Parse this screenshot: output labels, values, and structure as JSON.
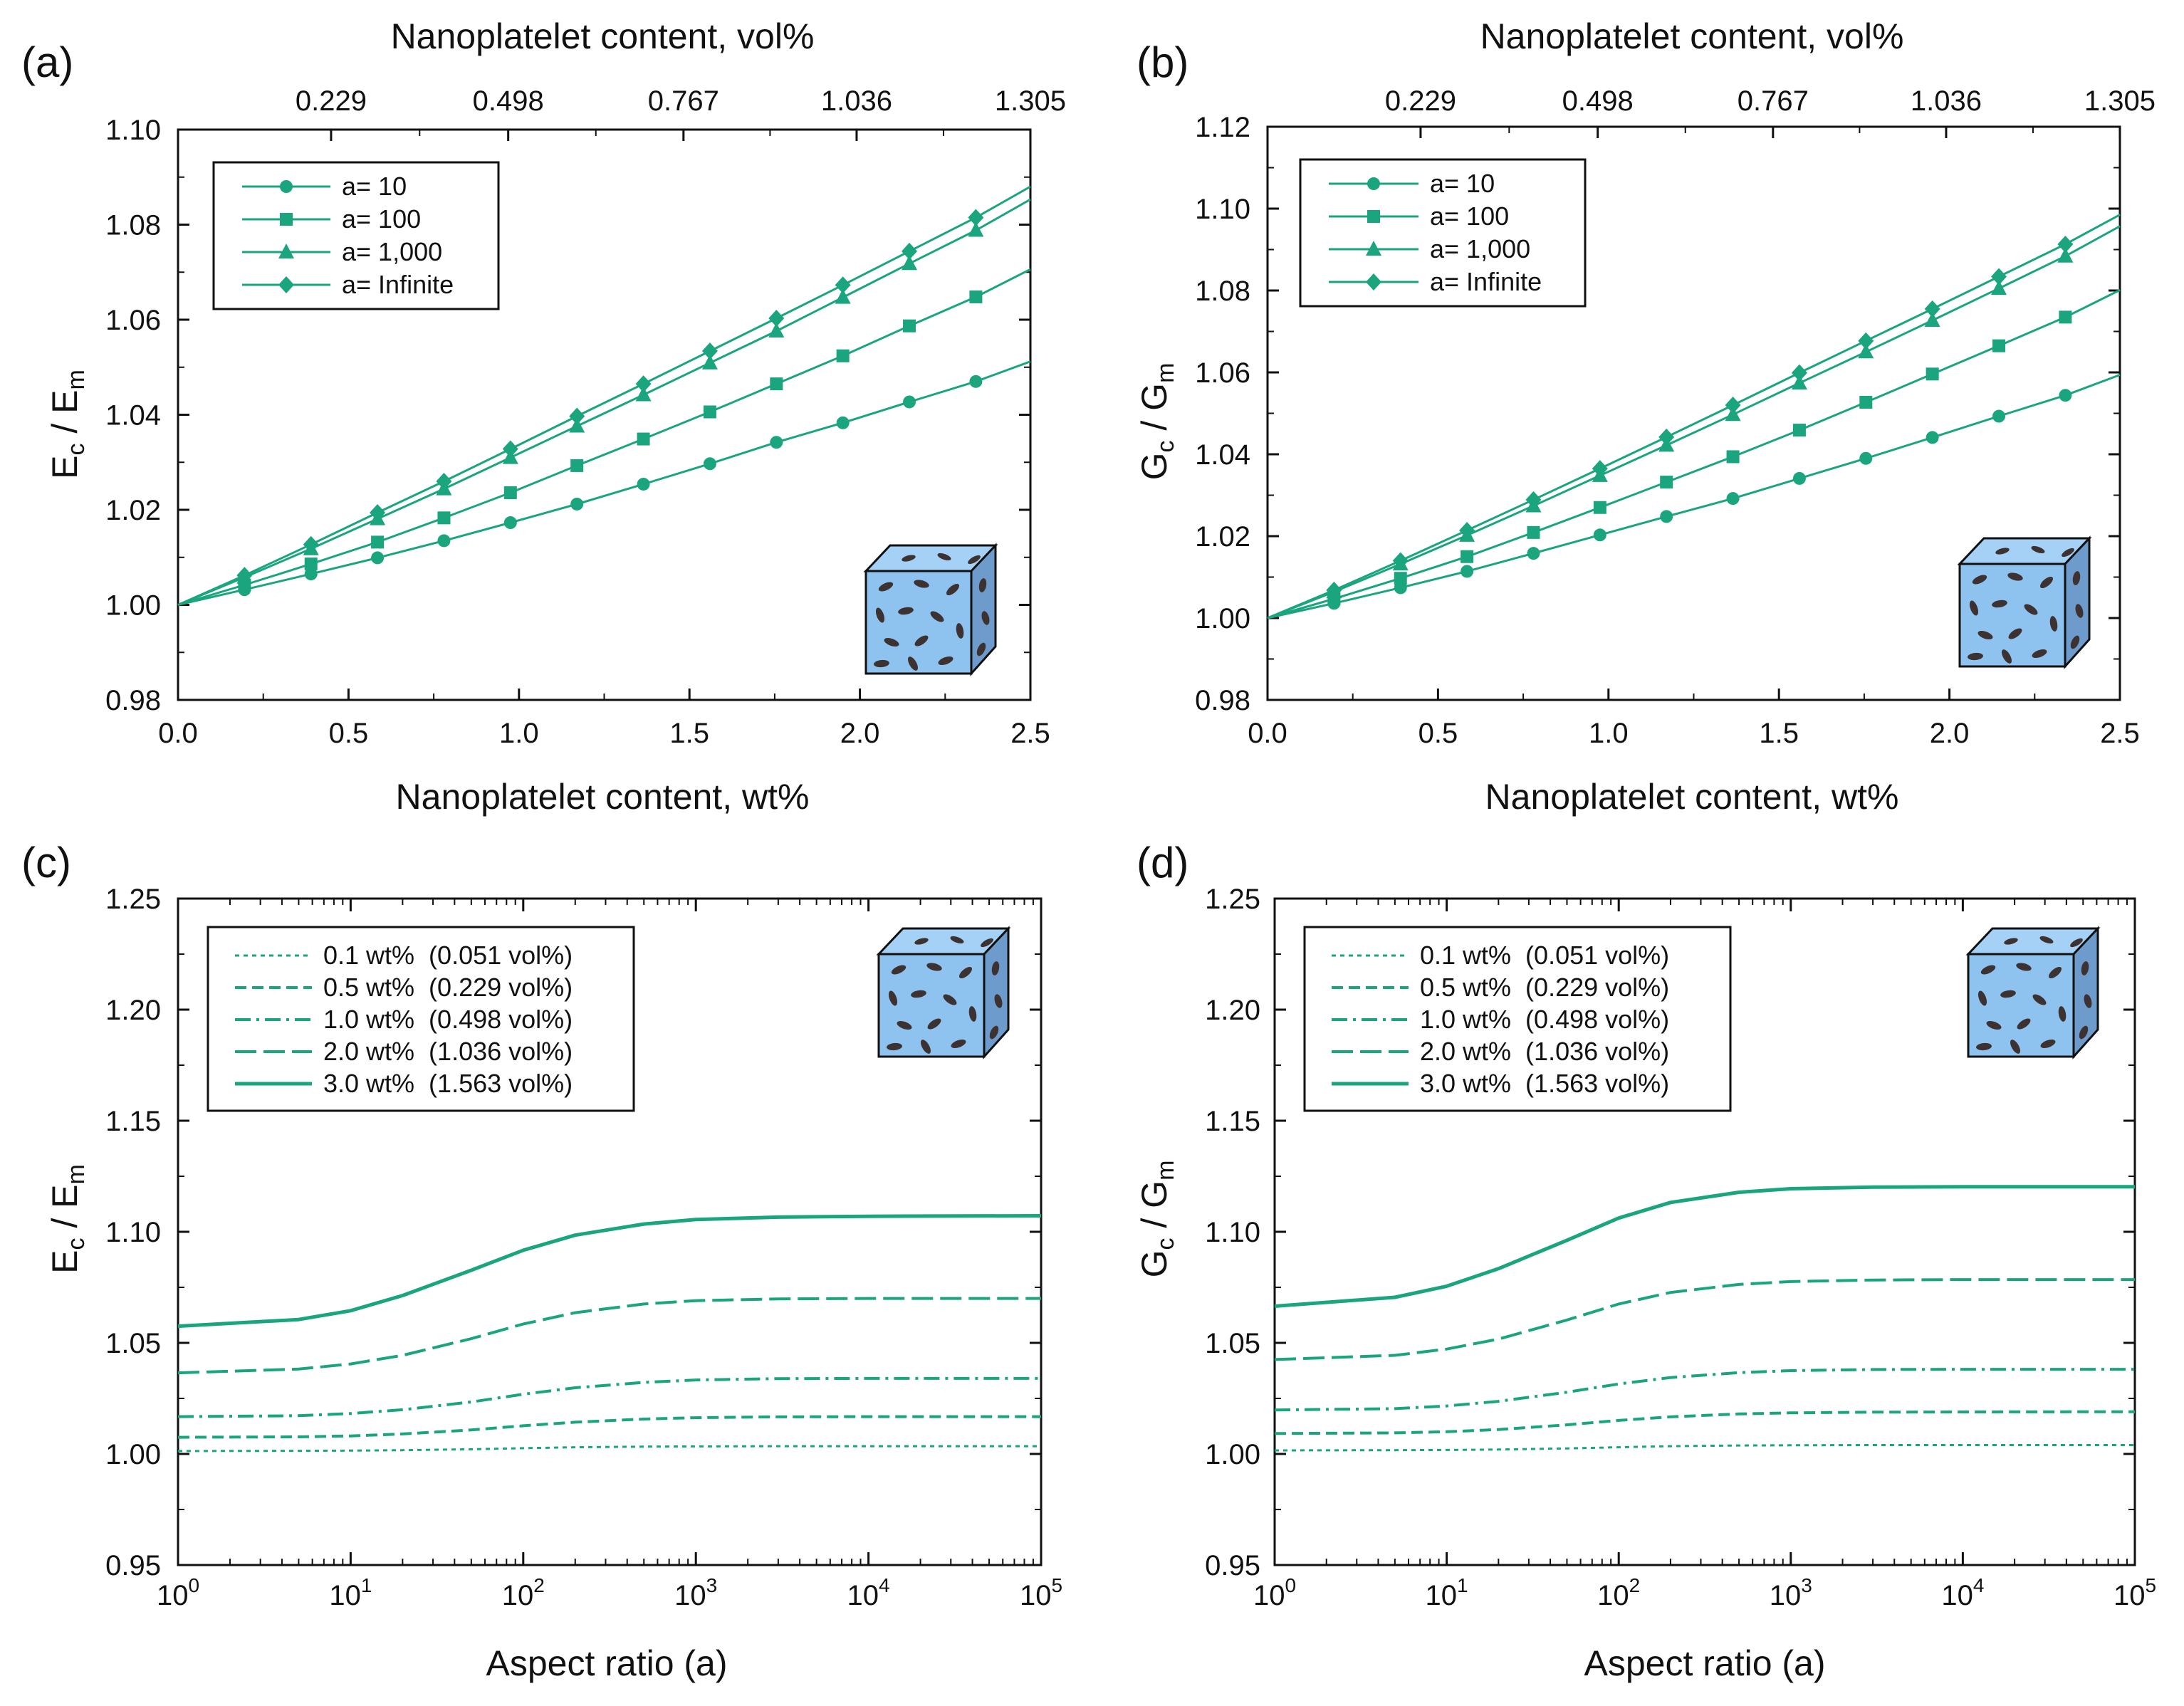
{
  "colors": {
    "series": "#1aa57e",
    "axis": "#111111",
    "cube_face": "#8ec3f0",
    "cube_side": "#6d9ccc",
    "cube_top": "#a6d1f6",
    "flake": "#3c3231"
  },
  "chart_data": [
    {
      "panel": "(a)",
      "type": "line",
      "xscale": "linear",
      "xlabel": "Nanoplatelet content, wt%",
      "ylabel_main": "E",
      "ylabel_sub1": "c",
      "ylabel_mid": " / E",
      "ylabel_sub2": "m",
      "top_axis_label": "Nanoplatelet content, vol%",
      "top_ticks": [
        {
          "wt": 0.4489,
          "label": "0.229"
        },
        {
          "wt": 0.9684,
          "label": "0.498"
        },
        {
          "wt": 1.4825,
          "label": "0.767"
        },
        {
          "wt": 1.9903,
          "label": "1.036"
        },
        {
          "wt": 2.4999,
          "label": "1.305"
        }
      ],
      "xlim": [
        0,
        2.5
      ],
      "ylim": [
        0.98,
        1.1
      ],
      "x_ticks": [
        {
          "v": 0,
          "label": "0.0"
        },
        {
          "v": 0.5,
          "label": "0.5"
        },
        {
          "v": 1.0,
          "label": "1.0"
        },
        {
          "v": 1.5,
          "label": "1.5"
        },
        {
          "v": 2.0,
          "label": "2.0"
        },
        {
          "v": 2.5,
          "label": "2.5"
        }
      ],
      "y_ticks": [
        {
          "v": 0.98,
          "label": "0.98"
        },
        {
          "v": 1.0,
          "label": "1.00"
        },
        {
          "v": 1.02,
          "label": "1.02"
        },
        {
          "v": 1.04,
          "label": "1.04"
        },
        {
          "v": 1.06,
          "label": "1.06"
        },
        {
          "v": 1.08,
          "label": "1.08"
        },
        {
          "v": 1.1,
          "label": "1.10"
        }
      ],
      "legend": "top-left",
      "series": [
        {
          "name": "a= 10",
          "marker": "circle",
          "x": [
            0,
            0.195,
            0.39,
            0.585,
            0.78,
            0.975,
            1.17,
            1.365,
            1.56,
            1.755,
            1.95,
            2.145,
            2.34,
            2.5
          ],
          "y": [
            1.0,
            1.0032,
            1.0065,
            1.0099,
            1.0135,
            1.0173,
            1.0212,
            1.0254,
            1.0297,
            1.0342,
            1.0383,
            1.0427,
            1.047,
            1.0512
          ]
        },
        {
          "name": "a= 100",
          "marker": "square",
          "x": [
            0,
            0.195,
            0.39,
            0.585,
            0.78,
            0.975,
            1.17,
            1.365,
            1.56,
            1.755,
            1.95,
            2.145,
            2.34,
            2.5
          ],
          "y": [
            1.0,
            1.0042,
            1.0086,
            1.0132,
            1.0183,
            1.0236,
            1.0293,
            1.0349,
            1.0406,
            1.0465,
            1.0524,
            1.0587,
            1.0648,
            1.0706
          ]
        },
        {
          "name": "a= 1,000",
          "marker": "triangle",
          "x": [
            0,
            0.195,
            0.39,
            0.585,
            0.78,
            0.975,
            1.17,
            1.365,
            1.56,
            1.755,
            1.95,
            2.145,
            2.34,
            2.5
          ],
          "y": [
            1.0,
            1.0058,
            1.0118,
            1.0181,
            1.0244,
            1.031,
            1.0376,
            1.0442,
            1.0509,
            1.0576,
            1.0647,
            1.0718,
            1.0788,
            1.0853
          ]
        },
        {
          "name": "a= Infinite",
          "marker": "diamond",
          "x": [
            0,
            0.195,
            0.39,
            0.585,
            0.78,
            0.975,
            1.17,
            1.365,
            1.56,
            1.755,
            1.95,
            2.145,
            2.34,
            2.5
          ],
          "y": [
            1.0,
            1.0062,
            1.0127,
            1.0194,
            1.026,
            1.0328,
            1.0397,
            1.0465,
            1.0534,
            1.0603,
            1.0673,
            1.0744,
            1.0815,
            1.088
          ]
        }
      ]
    },
    {
      "panel": "(b)",
      "type": "line",
      "xscale": "linear",
      "xlabel": "Nanoplatelet content, wt%",
      "ylabel_main": "G",
      "ylabel_sub1": "c",
      "ylabel_mid": " / G",
      "ylabel_sub2": "m",
      "top_axis_label": "Nanoplatelet content, vol%",
      "top_ticks": [
        {
          "wt": 0.4489,
          "label": "0.229"
        },
        {
          "wt": 0.9684,
          "label": "0.498"
        },
        {
          "wt": 1.4825,
          "label": "0.767"
        },
        {
          "wt": 1.9903,
          "label": "1.036"
        },
        {
          "wt": 2.4999,
          "label": "1.305"
        }
      ],
      "xlim": [
        0,
        2.5
      ],
      "ylim": [
        0.98,
        1.12
      ],
      "x_ticks": [
        {
          "v": 0,
          "label": "0.0"
        },
        {
          "v": 0.5,
          "label": "0.5"
        },
        {
          "v": 1.0,
          "label": "1.0"
        },
        {
          "v": 1.5,
          "label": "1.5"
        },
        {
          "v": 2.0,
          "label": "2.0"
        },
        {
          "v": 2.5,
          "label": "2.5"
        }
      ],
      "y_ticks": [
        {
          "v": 0.98,
          "label": "0.98"
        },
        {
          "v": 1.0,
          "label": "1.00"
        },
        {
          "v": 1.02,
          "label": "1.02"
        },
        {
          "v": 1.04,
          "label": "1.04"
        },
        {
          "v": 1.06,
          "label": "1.06"
        },
        {
          "v": 1.08,
          "label": "1.08"
        },
        {
          "v": 1.1,
          "label": "1.10"
        },
        {
          "v": 1.12,
          "label": "1.12"
        }
      ],
      "legend": "top-left",
      "series": [
        {
          "name": "a= 10",
          "marker": "circle",
          "x": [
            0,
            0.195,
            0.39,
            0.585,
            0.78,
            0.975,
            1.17,
            1.365,
            1.56,
            1.755,
            1.95,
            2.145,
            2.34,
            2.5
          ],
          "y": [
            1.0,
            1.0036,
            1.0074,
            1.0114,
            1.0158,
            1.0203,
            1.0248,
            1.0292,
            1.0341,
            1.039,
            1.0441,
            1.0493,
            1.0544,
            1.0594
          ]
        },
        {
          "name": "a= 100",
          "marker": "square",
          "x": [
            0,
            0.195,
            0.39,
            0.585,
            0.78,
            0.975,
            1.17,
            1.365,
            1.56,
            1.755,
            1.95,
            2.145,
            2.34,
            2.5
          ],
          "y": [
            1.0,
            1.0047,
            1.0097,
            1.015,
            1.0209,
            1.027,
            1.0332,
            1.0394,
            1.0459,
            1.0527,
            1.0596,
            1.0665,
            1.0735,
            1.0801
          ]
        },
        {
          "name": "a= 1,000",
          "marker": "triangle",
          "x": [
            0,
            0.195,
            0.39,
            0.585,
            0.78,
            0.975,
            1.17,
            1.365,
            1.56,
            1.755,
            1.95,
            2.145,
            2.34,
            2.5
          ],
          "y": [
            1.0,
            1.0064,
            1.0132,
            1.0202,
            1.0274,
            1.0348,
            1.0422,
            1.0497,
            1.0574,
            1.065,
            1.0727,
            1.0805,
            1.0884,
            1.0957
          ]
        },
        {
          "name": "a= Infinite",
          "marker": "diamond",
          "x": [
            0,
            0.195,
            0.39,
            0.585,
            0.78,
            0.975,
            1.17,
            1.365,
            1.56,
            1.755,
            1.95,
            2.145,
            2.34,
            2.5
          ],
          "y": [
            1.0,
            1.0068,
            1.014,
            1.0214,
            1.0289,
            1.0365,
            1.0442,
            1.052,
            1.0599,
            1.0677,
            1.0755,
            1.0834,
            1.0913,
            1.0985
          ]
        }
      ]
    },
    {
      "panel": "(c)",
      "type": "line",
      "xscale": "log",
      "xlabel": "Aspect ratio (a)",
      "ylabel_main": "E",
      "ylabel_sub1": "c",
      "ylabel_mid": " / E",
      "ylabel_sub2": "m",
      "xlim": [
        1,
        100000
      ],
      "ylim": [
        0.95,
        1.25
      ],
      "x_ticks": [
        {
          "exp": 0,
          "base": "10",
          "sup": "0"
        },
        {
          "exp": 1,
          "base": "10",
          "sup": "1"
        },
        {
          "exp": 2,
          "base": "10",
          "sup": "2"
        },
        {
          "exp": 3,
          "base": "10",
          "sup": "3"
        },
        {
          "exp": 4,
          "base": "10",
          "sup": "4"
        },
        {
          "exp": 5,
          "base": "10",
          "sup": "5"
        }
      ],
      "y_ticks": [
        {
          "v": 0.95,
          "label": "0.95"
        },
        {
          "v": 1.0,
          "label": "1.00"
        },
        {
          "v": 1.05,
          "label": "1.05"
        },
        {
          "v": 1.1,
          "label": "1.10"
        },
        {
          "v": 1.15,
          "label": "1.15"
        },
        {
          "v": 1.2,
          "label": "1.20"
        },
        {
          "v": 1.25,
          "label": "1.25"
        }
      ],
      "legend": "top-left",
      "series": [
        {
          "name": "0.1 wt%  (0.051 vol%)",
          "dash": "dotted",
          "x": [
            1,
            5,
            10,
            20,
            50,
            100,
            200,
            500,
            1000,
            3000,
            10000,
            100000
          ],
          "y": [
            1.0013,
            1.0014,
            1.0015,
            1.0017,
            1.0021,
            1.0026,
            1.003,
            1.0033,
            1.0034,
            1.0035,
            1.0035,
            1.0035
          ]
        },
        {
          "name": "0.5 wt%  (0.229 vol%)",
          "dash": "dashed-fine",
          "x": [
            1,
            5,
            10,
            20,
            50,
            100,
            200,
            500,
            1000,
            3000,
            10000,
            100000
          ],
          "y": [
            1.0075,
            1.0077,
            1.0081,
            1.009,
            1.0108,
            1.0127,
            1.0143,
            1.0157,
            1.0163,
            1.0167,
            1.0168,
            1.0168
          ]
        },
        {
          "name": "1.0 wt%  (0.498 vol%)",
          "dash": "dash-dot",
          "x": [
            1,
            5,
            10,
            20,
            50,
            100,
            200,
            500,
            1000,
            3000,
            10000,
            100000
          ],
          "y": [
            1.0168,
            1.0172,
            1.0182,
            1.0199,
            1.0234,
            1.0269,
            1.0298,
            1.0322,
            1.0333,
            1.0339,
            1.034,
            1.034
          ]
        },
        {
          "name": "2.0 wt%  (1.036 vol%)",
          "dash": "long-dash",
          "x": [
            1,
            5,
            10,
            20,
            50,
            100,
            200,
            500,
            1000,
            3000,
            10000,
            100000
          ],
          "y": [
            1.0365,
            1.0382,
            1.0405,
            1.0444,
            1.0519,
            1.0585,
            1.0636,
            1.0675,
            1.069,
            1.0698,
            1.07,
            1.07
          ]
        },
        {
          "name": "3.0 wt%  (1.563 vol%)",
          "dash": "solid",
          "x": [
            1,
            5,
            10,
            20,
            50,
            100,
            200,
            500,
            1000,
            3000,
            10000,
            100000
          ],
          "y": [
            1.0575,
            1.0605,
            1.0645,
            1.0713,
            1.0827,
            1.0917,
            1.0985,
            1.1035,
            1.1055,
            1.1066,
            1.107,
            1.1072
          ]
        }
      ]
    },
    {
      "panel": "(d)",
      "type": "line",
      "xscale": "log",
      "xlabel": "Aspect ratio (a)",
      "ylabel_main": "G",
      "ylabel_sub1": "c",
      "ylabel_mid": " / G",
      "ylabel_sub2": "m",
      "xlim": [
        1,
        100000
      ],
      "ylim": [
        0.95,
        1.25
      ],
      "x_ticks": [
        {
          "exp": 0,
          "base": "10",
          "sup": "0"
        },
        {
          "exp": 1,
          "base": "10",
          "sup": "1"
        },
        {
          "exp": 2,
          "base": "10",
          "sup": "2"
        },
        {
          "exp": 3,
          "base": "10",
          "sup": "3"
        },
        {
          "exp": 4,
          "base": "10",
          "sup": "4"
        },
        {
          "exp": 5,
          "base": "10",
          "sup": "5"
        }
      ],
      "y_ticks": [
        {
          "v": 0.95,
          "label": "0.95"
        },
        {
          "v": 1.0,
          "label": "1.00"
        },
        {
          "v": 1.05,
          "label": "1.05"
        },
        {
          "v": 1.1,
          "label": "1.10"
        },
        {
          "v": 1.15,
          "label": "1.15"
        },
        {
          "v": 1.2,
          "label": "1.20"
        },
        {
          "v": 1.25,
          "label": "1.25"
        }
      ],
      "legend": "top-left",
      "series": [
        {
          "name": "0.1 wt%  (0.051 vol%)",
          "dash": "dotted",
          "x": [
            1,
            5,
            10,
            20,
            50,
            100,
            200,
            500,
            1000,
            3000,
            10000,
            100000
          ],
          "y": [
            1.0016,
            1.0017,
            1.0018,
            1.002,
            1.0025,
            1.003,
            1.0035,
            1.0038,
            1.0039,
            1.004,
            1.004,
            1.004
          ]
        },
        {
          "name": "0.5 wt%  (0.229 vol%)",
          "dash": "dashed-fine",
          "x": [
            1,
            5,
            10,
            20,
            50,
            100,
            200,
            500,
            1000,
            3000,
            10000,
            100000
          ],
          "y": [
            1.0092,
            1.0095,
            1.01,
            1.011,
            1.0131,
            1.0151,
            1.0167,
            1.018,
            1.0185,
            1.0188,
            1.0189,
            1.019
          ]
        },
        {
          "name": "1.0 wt%  (0.498 vol%)",
          "dash": "dash-dot",
          "x": [
            1,
            5,
            10,
            20,
            50,
            100,
            200,
            500,
            1000,
            3000,
            10000,
            100000
          ],
          "y": [
            1.0198,
            1.0204,
            1.0216,
            1.0237,
            1.0278,
            1.0315,
            1.0344,
            1.0366,
            1.0375,
            1.038,
            1.0381,
            1.0381
          ]
        },
        {
          "name": "2.0 wt%  (1.036 vol%)",
          "dash": "long-dash",
          "x": [
            1,
            5,
            10,
            20,
            50,
            100,
            200,
            500,
            1000,
            3000,
            10000,
            100000
          ],
          "y": [
            1.0425,
            1.0444,
            1.0472,
            1.0517,
            1.0603,
            1.0675,
            1.0727,
            1.0763,
            1.0776,
            1.0783,
            1.0785,
            1.0785
          ]
        },
        {
          "name": "3.0 wt%  (1.563 vol%)",
          "dash": "solid",
          "x": [
            1,
            5,
            10,
            20,
            50,
            100,
            200,
            500,
            1000,
            3000,
            10000,
            100000
          ],
          "y": [
            1.0665,
            1.0705,
            1.0755,
            1.0834,
            1.0962,
            1.1062,
            1.1132,
            1.1178,
            1.1194,
            1.1201,
            1.1203,
            1.1203
          ]
        }
      ]
    }
  ]
}
